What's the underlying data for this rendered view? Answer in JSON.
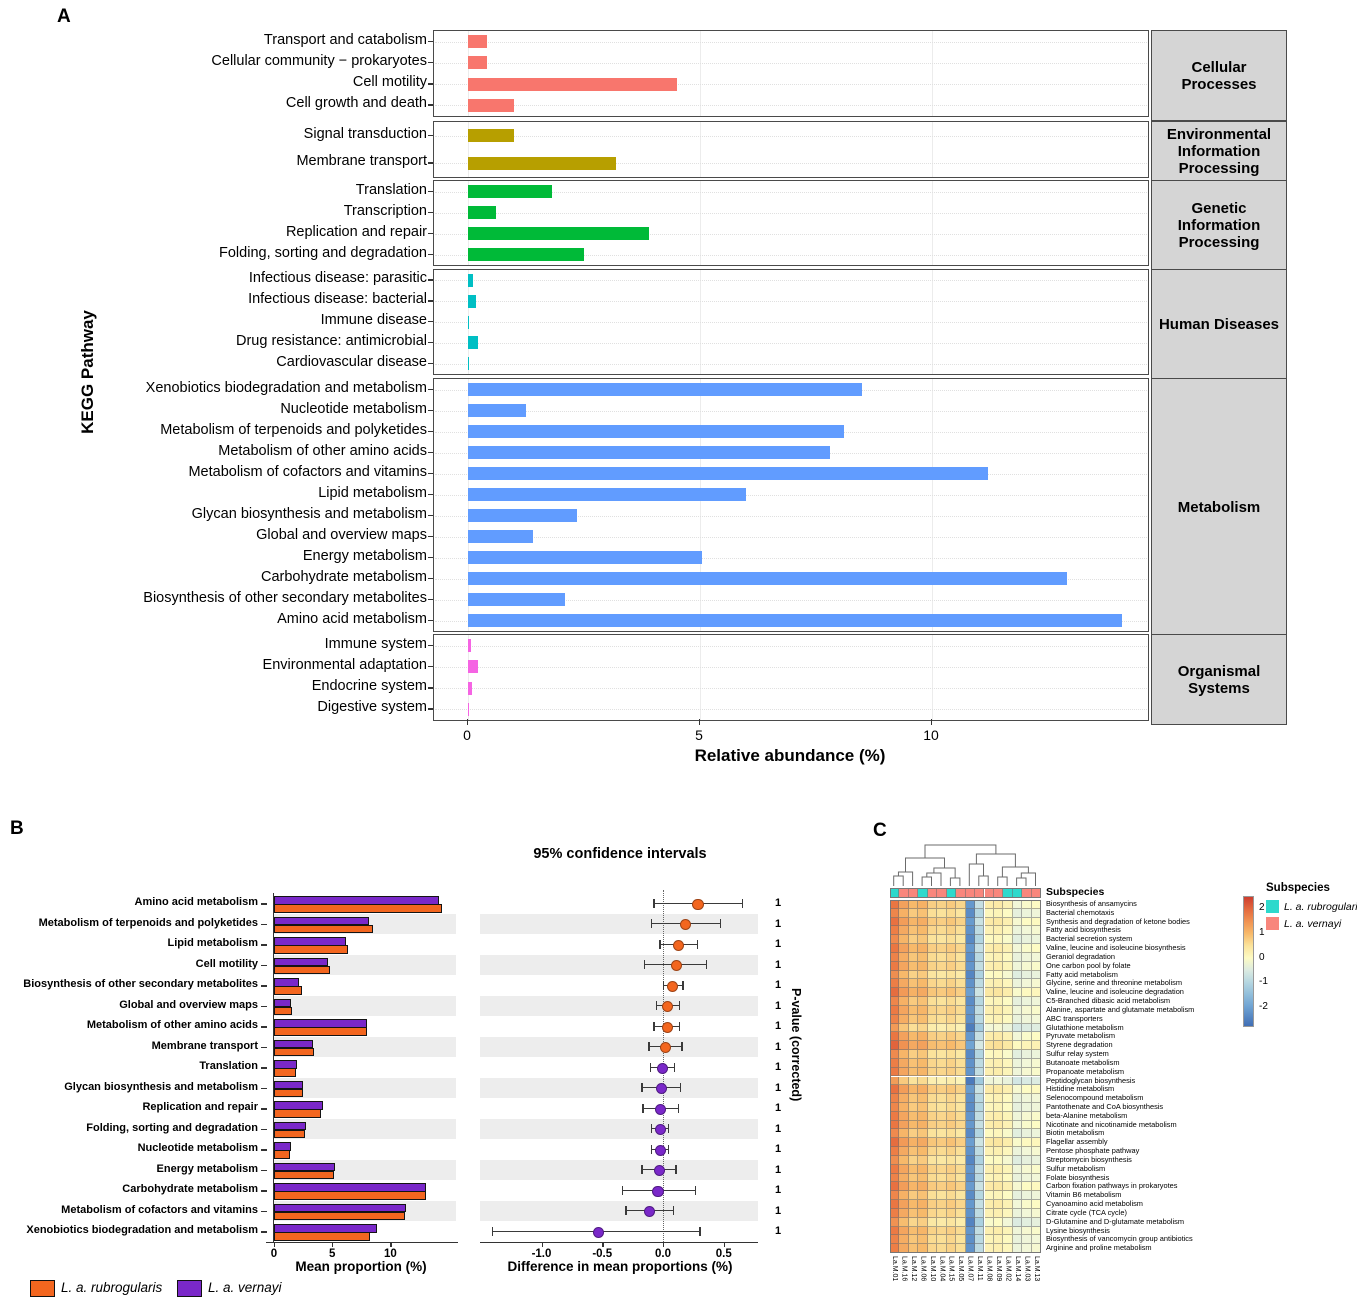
{
  "labels": {
    "a": "A",
    "b": "B",
    "c": "C"
  },
  "chart_data": [
    {
      "id": "kegg-relative-abundance",
      "type": "bar",
      "orientation": "horizontal",
      "ylabel": "KEGG Pathway",
      "xlabel": "Relative abundance (%)",
      "xticks": [
        0,
        5,
        10
      ],
      "xlim": [
        0,
        14.6
      ],
      "grid": true,
      "facets": [
        {
          "strip": "Cellular Processes",
          "color": "#F8766D",
          "categories": [
            "Transport and catabolism",
            "Cellular community − prokaryotes",
            "Cell motility",
            "Cell growth and death"
          ],
          "values": [
            0.4,
            0.4,
            4.5,
            1.0
          ]
        },
        {
          "strip": "Environmental Information Processing",
          "color": "#B79F00",
          "categories": [
            "Signal transduction",
            "Membrane transport"
          ],
          "values": [
            1.0,
            3.2
          ]
        },
        {
          "strip": "Genetic Information Processing",
          "color": "#00BA38",
          "categories": [
            "Translation",
            "Transcription",
            "Replication and repair",
            "Folding, sorting and degradation"
          ],
          "values": [
            1.8,
            0.6,
            3.9,
            2.5
          ]
        },
        {
          "strip": "Human Diseases",
          "color": "#00BFC4",
          "categories": [
            "Infectious disease: parasitic",
            "Infectious disease: bacterial",
            "Immune disease",
            "Drug resistance: antimicrobial",
            "Cardiovascular disease"
          ],
          "values": [
            0.1,
            0.17,
            0.02,
            0.21,
            0.02
          ]
        },
        {
          "strip": "Metabolism",
          "color": "#619CFF",
          "categories": [
            "Xenobiotics biodegradation and metabolism",
            "Nucleotide metabolism",
            "Metabolism of terpenoids and polyketides",
            "Metabolism of other amino acids",
            "Metabolism of cofactors and vitamins",
            "Lipid metabolism",
            "Glycan biosynthesis and metabolism",
            "Global and overview maps",
            "Energy metabolism",
            "Carbohydrate metabolism",
            "Biosynthesis of other secondary metabolites",
            "Amino acid metabolism"
          ],
          "values": [
            8.5,
            1.25,
            8.1,
            7.8,
            11.2,
            6.0,
            2.35,
            1.4,
            5.05,
            12.9,
            2.1,
            14.1
          ]
        },
        {
          "strip": "Organismal Systems",
          "color": "#F564E3",
          "categories": [
            "Immune system",
            "Environmental adaptation",
            "Endocrine system",
            "Digestive system"
          ],
          "values": [
            0.06,
            0.22,
            0.08,
            0.02
          ]
        }
      ]
    },
    {
      "id": "stamp-extended-error-bar",
      "type": "bar+interval",
      "title": "95% confidence intervals",
      "xlabel_bars": "Mean proportion (%)",
      "xlabel_intervals": "Difference in mean proportions (%)",
      "ylabel_right": "P-value (corrected)",
      "bar_xticks": [
        0,
        5,
        10
      ],
      "interval_xticks": [
        -1.0,
        -0.5,
        0.0,
        0.5
      ],
      "interval_tick_labels": [
        "-1.0",
        "-0.5",
        "0.0",
        "0.5"
      ],
      "series_legend": [
        {
          "name": "L. a. rubrogularis",
          "color": "#F3661F"
        },
        {
          "name": "L. a. vernayi",
          "color": "#7A28C9"
        }
      ],
      "categories": [
        "Amino acid metabolism",
        "Metabolism of terpenoids and polyketides",
        "Lipid metabolism",
        "Cell motility",
        "Biosynthesis of other secondary metabolites",
        "Global and overview maps",
        "Metabolism of other amino acids",
        "Membrane transport",
        "Translation",
        "Glycan biosynthesis and metabolism",
        "Replication and repair",
        "Folding, sorting and degradation",
        "Nucleotide metabolism",
        "Energy metabolism",
        "Carbohydrate metabolism",
        "Metabolism of cofactors and vitamins",
        "Xenobiotics biodegradation and metabolism"
      ],
      "series": [
        {
          "name": "L. a. vernayi",
          "values": [
            14.0,
            8.0,
            6.0,
            4.5,
            2.0,
            1.3,
            7.8,
            3.2,
            1.8,
            2.35,
            4.0,
            2.55,
            1.25,
            5.05,
            12.9,
            11.2,
            8.65
          ]
        },
        {
          "name": "L. a. rubrogularis",
          "values": [
            14.3,
            8.3,
            6.2,
            4.6,
            2.2,
            1.4,
            7.8,
            3.3,
            1.75,
            2.3,
            3.9,
            2.5,
            1.2,
            5.0,
            12.85,
            11.1,
            8.1
          ]
        }
      ],
      "diff": [
        0.28,
        0.18,
        0.12,
        0.1,
        0.07,
        0.03,
        0.03,
        0.01,
        -0.01,
        -0.02,
        -0.03,
        -0.03,
        -0.03,
        -0.04,
        -0.05,
        -0.12,
        -0.54
      ],
      "ci_low": [
        -0.08,
        -0.1,
        -0.03,
        -0.16,
        0.0,
        -0.06,
        -0.08,
        -0.12,
        -0.11,
        -0.18,
        -0.17,
        -0.1,
        -0.1,
        -0.18,
        -0.34,
        -0.31,
        -1.41
      ],
      "ci_high": [
        0.65,
        0.47,
        0.28,
        0.35,
        0.16,
        0.13,
        0.13,
        0.15,
        0.09,
        0.14,
        0.12,
        0.04,
        0.04,
        0.1,
        0.26,
        0.08,
        0.3
      ],
      "p_values": [
        "1",
        "1",
        "1",
        "1",
        "1",
        "1",
        "1",
        "1",
        "1",
        "1",
        "1",
        "1",
        "1",
        "1",
        "1",
        "1",
        "1"
      ],
      "dot_group": [
        "r",
        "r",
        "r",
        "r",
        "r",
        "r",
        "r",
        "r",
        "v",
        "v",
        "v",
        "v",
        "v",
        "v",
        "v",
        "v",
        "v"
      ]
    },
    {
      "id": "pathway-heatmap",
      "type": "heatmap",
      "annotation_label": "Subspecies",
      "legend_title": "Subspecies",
      "legend": [
        {
          "label": "L. a. rubrogularis",
          "color": "#2ED9CC"
        },
        {
          "label": "L. a. vernayi",
          "color": "#F8867C"
        }
      ],
      "colorbar_ticks": [
        2,
        1,
        0,
        -1,
        -2
      ],
      "value_range": [
        -2.8,
        2.5
      ],
      "columns": [
        "La.M.01",
        "La.M.16",
        "La.M.12",
        "La.M.06",
        "La.M.10",
        "La.M.04",
        "La.M.15",
        "La.M.05",
        "La.M.07",
        "La.M.11",
        "La.M.08",
        "La.M.09",
        "La.M.02",
        "La.M.14",
        "La.M.03",
        "La.M.13"
      ],
      "column_subspecies": [
        "r",
        "v",
        "v",
        "r",
        "v",
        "v",
        "r",
        "v",
        "v",
        "v",
        "v",
        "v",
        "r",
        "r",
        "v",
        "v"
      ],
      "rows": [
        "Biosynthesis of ansamycins",
        "Bacterial chemotaxis",
        "Synthesis and degradation of ketone bodies",
        "Fatty acid biosynthesis",
        "Bacterial secretion system",
        "Valine, leucine and isoleucine biosynthesis",
        "Geraniol degradation",
        "One carbon pool by folate",
        "Fatty acid metabolism",
        "Glycine, serine and threonine metabolism",
        "Valine, leucine and isoleucine degradation",
        "C5-Branched dibasic acid metabolism",
        "Alanine, aspartate and glutamate metabolism",
        "ABC transporters",
        "Glutathione metabolism",
        "Pyruvate metabolism",
        "Styrene degradation",
        "Sulfur relay system",
        "Butanoate metabolism",
        "Propanoate metabolism",
        "Peptidoglycan biosynthesis",
        "Histidine metabolism",
        "Selenocompound metabolism",
        "Pantothenate and CoA biosynthesis",
        "beta-Alanine metabolism",
        "Nicotinate and nicotinamide metabolism",
        "Biotin metabolism",
        "Flagellar assembly",
        "Pentose phosphate pathway",
        "Streptomycin biosynthesis",
        "Sulfur metabolism",
        "Folate biosynthesis",
        "Carbon fixation pathways in prokaryotes",
        "Vitamin B6 metabolism",
        "Cyanoamino acid metabolism",
        "Citrate cycle (TCA cycle)",
        "D-Glutamine and D-glutamate metabolism",
        "Lysine biosynthesis",
        "Biosynthesis of vancomycin group antibiotics",
        "Arginine and proline metabolism"
      ],
      "column_profile": [
        1.7,
        1.15,
        0.85,
        0.95,
        0.6,
        0.55,
        0.65,
        0.5,
        -2.3,
        -0.95,
        0.15,
        0.2,
        0.05,
        -0.3,
        -0.2,
        -0.15
      ],
      "row_offsets": [
        0.15,
        -0.05,
        0.2,
        0.05,
        -0.1,
        0.15,
        0,
        0.1,
        -0.15,
        0.05,
        0.25,
        -0.05,
        0.1,
        0,
        -0.3,
        0.15,
        0.35,
        -0.1,
        0.05,
        0.1,
        -0.35,
        0.2,
        0,
        -0.05,
        0.1,
        0.15,
        -0.1,
        0.25,
        0.05,
        -0.15,
        0.1,
        0,
        0.2,
        -0.05,
        0.15,
        0.05,
        -0.2,
        0.1,
        0,
        0.05
      ]
    }
  ]
}
